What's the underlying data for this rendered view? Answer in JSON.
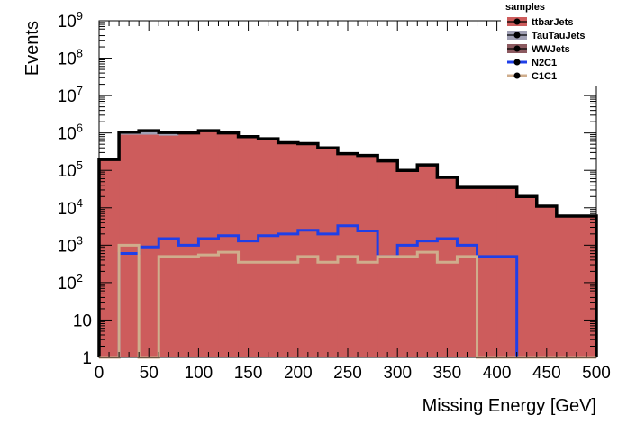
{
  "chart_data": {
    "type": "area",
    "xlabel": "Missing Energy [GeV]",
    "ylabel": "Events",
    "xlim": [
      0,
      500
    ],
    "ylim": [
      1,
      1000000000
    ],
    "yscale": "log",
    "x_ticks": [
      "0",
      "50",
      "100",
      "150",
      "200",
      "250",
      "300",
      "350",
      "400",
      "450",
      "500"
    ],
    "y_ticks": [
      {
        "value": 1,
        "base": "1",
        "exp": ""
      },
      {
        "value": 10,
        "base": "10",
        "exp": ""
      },
      {
        "value": 100,
        "base": "10",
        "exp": "2"
      },
      {
        "value": 1000,
        "base": "10",
        "exp": "3"
      },
      {
        "value": 10000,
        "base": "10",
        "exp": "4"
      },
      {
        "value": 100000,
        "base": "10",
        "exp": "5"
      },
      {
        "value": 1000000,
        "base": "10",
        "exp": "6"
      },
      {
        "value": 10000000,
        "base": "10",
        "exp": "7"
      },
      {
        "value": 100000000,
        "base": "10",
        "exp": "8"
      },
      {
        "value": 1000000000,
        "base": "10",
        "exp": "9"
      }
    ],
    "legend_title": "samples",
    "legend_position": "top-right",
    "bin_edges": [
      0,
      20,
      40,
      60,
      80,
      100,
      120,
      140,
      160,
      180,
      200,
      220,
      240,
      260,
      280,
      300,
      320,
      340,
      360,
      380,
      400,
      420,
      440,
      460,
      480,
      500
    ],
    "series": [
      {
        "name": "ttbarJets",
        "kind": "stack",
        "color": "#cd5c5c",
        "values": [
          190000,
          900000,
          900000,
          850000,
          950000,
          1150000,
          1000000,
          800000,
          700000,
          550000,
          520000,
          400000,
          280000,
          250000,
          180000,
          100000,
          140000,
          65000,
          35000,
          35000,
          35000,
          20000,
          11000,
          6000,
          6000
        ]
      },
      {
        "name": "TauTauJets",
        "kind": "stack",
        "color": "#a0a0b4",
        "values": [
          5000,
          150000,
          250000,
          180000,
          50000,
          0,
          0,
          0,
          0,
          0,
          0,
          0,
          0,
          0,
          0,
          0,
          0,
          0,
          0,
          0,
          0,
          0,
          0,
          0,
          0
        ]
      },
      {
        "name": "WWJets",
        "kind": "stack",
        "color": "#8c5a60",
        "values": [
          0,
          0,
          0,
          0,
          0,
          0,
          0,
          0,
          0,
          0,
          0,
          0,
          0,
          0,
          0,
          0,
          0,
          0,
          0,
          0,
          0,
          0,
          0,
          0,
          0
        ]
      },
      {
        "name": "N2C1",
        "kind": "line",
        "color": "#1f3fe8",
        "values": [
          0,
          600,
          900,
          1500,
          1000,
          1500,
          1800,
          1300,
          1800,
          2000,
          2500,
          2000,
          3300,
          2400,
          500,
          1000,
          1300,
          1500,
          1000,
          500,
          500,
          0,
          0,
          0,
          0
        ]
      },
      {
        "name": "C1C1",
        "kind": "line",
        "color": "#cfad8c",
        "values": [
          0,
          1000,
          0,
          500,
          500,
          550,
          650,
          350,
          350,
          350,
          500,
          350,
          500,
          350,
          500,
          500,
          650,
          350,
          500,
          0,
          0,
          0,
          0,
          0,
          0
        ]
      }
    ]
  }
}
